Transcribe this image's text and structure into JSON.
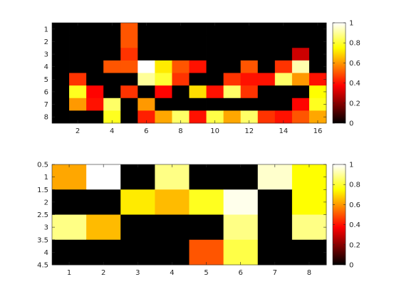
{
  "chart_data": [
    {
      "type": "heatmap",
      "title": "",
      "xlabel": "",
      "ylabel": "",
      "colormap": "hot",
      "x_ticks": [
        2,
        4,
        6,
        8,
        10,
        12,
        14,
        16
      ],
      "y_ticks": [
        1,
        2,
        3,
        4,
        5,
        6,
        7,
        8
      ],
      "xlim": [
        0.5,
        16.5
      ],
      "ylim": [
        0.5,
        8.5
      ],
      "y_reversed": true,
      "colorbar": {
        "range": [
          0,
          1
        ],
        "ticks": [
          0,
          0.2,
          0.4,
          0.6,
          0.8,
          1
        ]
      },
      "matrix": [
        [
          0,
          0,
          0,
          0,
          0.5,
          0,
          0,
          0,
          0,
          0,
          0,
          0,
          0,
          0,
          0,
          0
        ],
        [
          0,
          0,
          0,
          0,
          0.5,
          0,
          0,
          0,
          0,
          0,
          0,
          0,
          0,
          0,
          0,
          0
        ],
        [
          0,
          0,
          0,
          0,
          0.45,
          0,
          0,
          0,
          0,
          0,
          0,
          0,
          0,
          0,
          0.3,
          0
        ],
        [
          0,
          0,
          0,
          0.5,
          0.5,
          1.0,
          0.72,
          0.5,
          0.4,
          0,
          0,
          0.5,
          0,
          0.45,
          0.92,
          0
        ],
        [
          0,
          0.45,
          0,
          0,
          0,
          0.9,
          0.8,
          0.45,
          0,
          0,
          0.45,
          0.4,
          0.4,
          0.85,
          0.6,
          0.4
        ],
        [
          0,
          0.78,
          0.38,
          0,
          0.45,
          0,
          0.38,
          0,
          0.7,
          0.4,
          0.85,
          0.45,
          0,
          0,
          0,
          0.75
        ],
        [
          0,
          0.6,
          0.4,
          0.85,
          0,
          0.6,
          0,
          0,
          0,
          0,
          0,
          0,
          0,
          0,
          0.38,
          0.78
        ],
        [
          0,
          0,
          0,
          0.78,
          0,
          0.42,
          0.62,
          0.85,
          0.4,
          0.82,
          0.62,
          0.85,
          0.45,
          0.4,
          0.5,
          0.62
        ]
      ]
    },
    {
      "type": "heatmap",
      "title": "",
      "xlabel": "",
      "ylabel": "",
      "colormap": "hot",
      "x_ticks": [
        1,
        2,
        3,
        4,
        5,
        6,
        7,
        8
      ],
      "y_ticks": [
        0.5,
        1,
        1.5,
        2,
        2.5,
        3,
        3.5,
        4,
        4.5
      ],
      "xlim": [
        0.5,
        8.5
      ],
      "ylim": [
        0.5,
        4.5
      ],
      "y_reversed": true,
      "colorbar": {
        "range": [
          0,
          1
        ],
        "ticks": [
          0,
          0.2,
          0.4,
          0.6,
          0.8,
          1
        ]
      },
      "matrix": [
        [
          0.62,
          1.0,
          0,
          0.88,
          0,
          0,
          0.95,
          0.75
        ],
        [
          0,
          0,
          0.72,
          0.65,
          0.78,
          0.98,
          0,
          0.75
        ],
        [
          0.88,
          0.65,
          0,
          0,
          0,
          0.88,
          0,
          0.88
        ],
        [
          0,
          0,
          0,
          0,
          0.5,
          0.82,
          0,
          0
        ]
      ]
    }
  ]
}
